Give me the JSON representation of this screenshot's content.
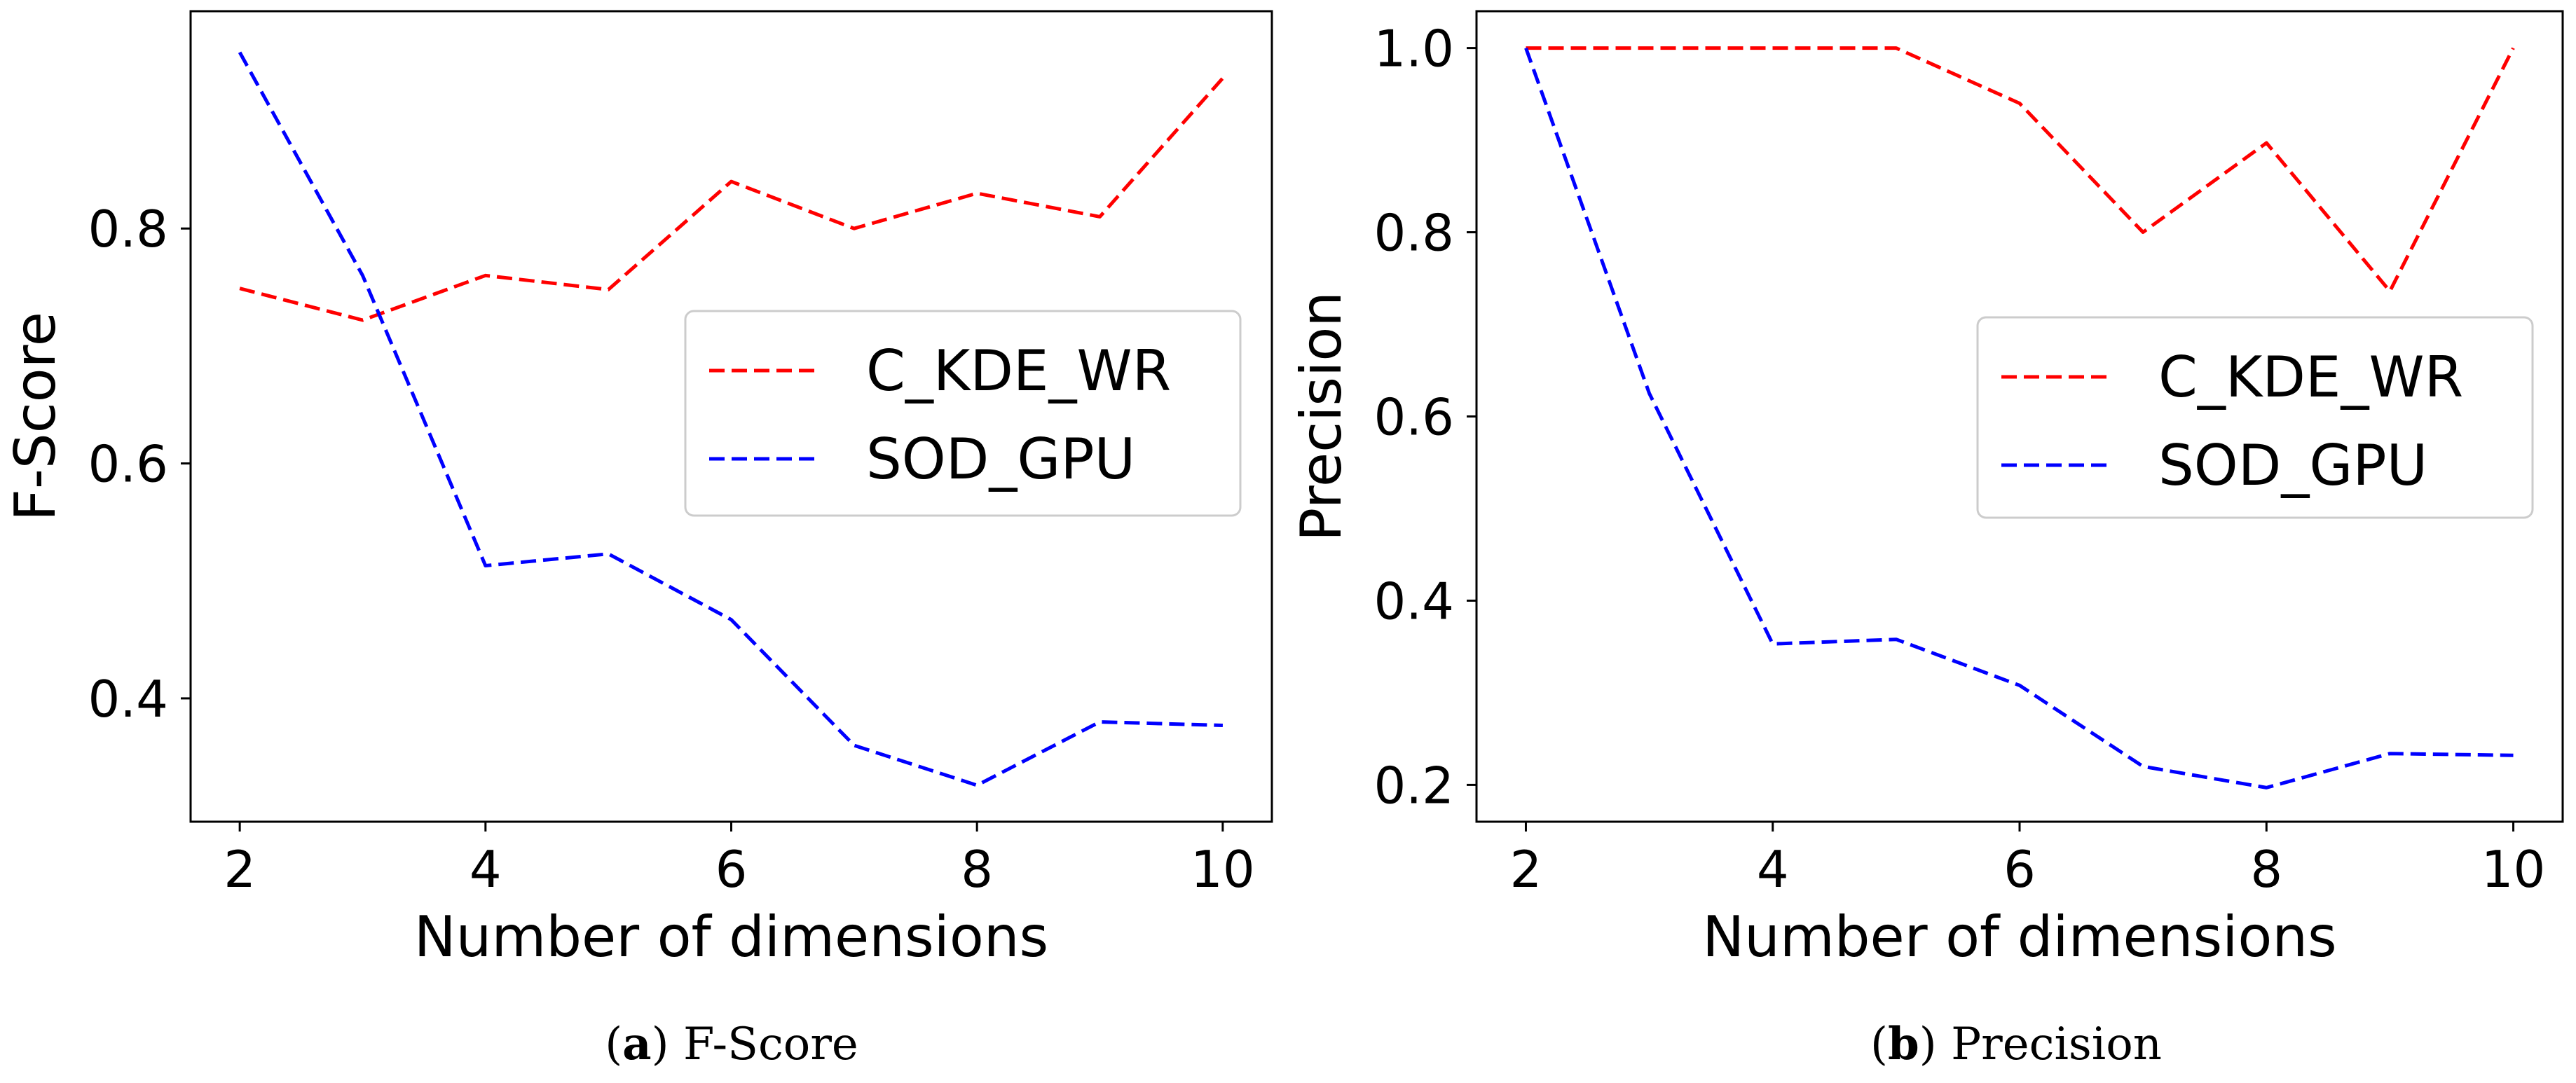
{
  "chart_data": [
    {
      "type": "line",
      "xlabel": "Number of dimensions",
      "ylabel": "F-Score",
      "x": [
        2,
        3,
        4,
        5,
        6,
        7,
        8,
        9,
        10
      ],
      "xlim": [
        1.6,
        10.4
      ],
      "ylim": [
        0.295,
        0.985
      ],
      "xticks": [
        2,
        4,
        6,
        8,
        10
      ],
      "xtick_labels": [
        "2",
        "4",
        "6",
        "8",
        "10"
      ],
      "yticks": [
        0.4,
        0.6,
        0.8
      ],
      "ytick_labels": [
        "0.4",
        "0.6",
        "0.8"
      ],
      "legend_position": "center-right",
      "series": [
        {
          "name": "C_KDE_WR",
          "color": "#ff0000",
          "style": "dashed",
          "values": [
            0.749,
            0.722,
            0.76,
            0.748,
            0.84,
            0.8,
            0.83,
            0.81,
            0.928
          ]
        },
        {
          "name": "SOD_GPU",
          "color": "#0000ff",
          "style": "dashed",
          "values": [
            0.95,
            0.76,
            0.513,
            0.523,
            0.467,
            0.36,
            0.326,
            0.38,
            0.377
          ]
        }
      ],
      "caption_label": "a",
      "caption_text": "F-Score"
    },
    {
      "type": "line",
      "xlabel": "Number of dimensions",
      "ylabel": "Precision",
      "x": [
        2,
        3,
        4,
        5,
        6,
        7,
        8,
        9,
        10
      ],
      "xlim": [
        1.6,
        10.4
      ],
      "ylim": [
        0.16,
        1.04
      ],
      "xticks": [
        2,
        4,
        6,
        8,
        10
      ],
      "xtick_labels": [
        "2",
        "4",
        "6",
        "8",
        "10"
      ],
      "yticks": [
        0.2,
        0.4,
        0.6,
        0.8,
        1.0
      ],
      "ytick_labels": [
        "0.2",
        "0.4",
        "0.6",
        "0.8",
        "1.0"
      ],
      "legend_position": "center-right",
      "series": [
        {
          "name": "C_KDE_WR",
          "color": "#ff0000",
          "style": "dashed",
          "values": [
            1.0,
            1.0,
            1.0,
            1.0,
            0.94,
            0.8,
            0.897,
            0.736,
            1.0
          ]
        },
        {
          "name": "SOD_GPU",
          "color": "#0000ff",
          "style": "dashed",
          "values": [
            1.0,
            0.625,
            0.353,
            0.358,
            0.308,
            0.22,
            0.197,
            0.234,
            0.232
          ]
        }
      ],
      "caption_label": "b",
      "caption_text": "Precision"
    }
  ]
}
